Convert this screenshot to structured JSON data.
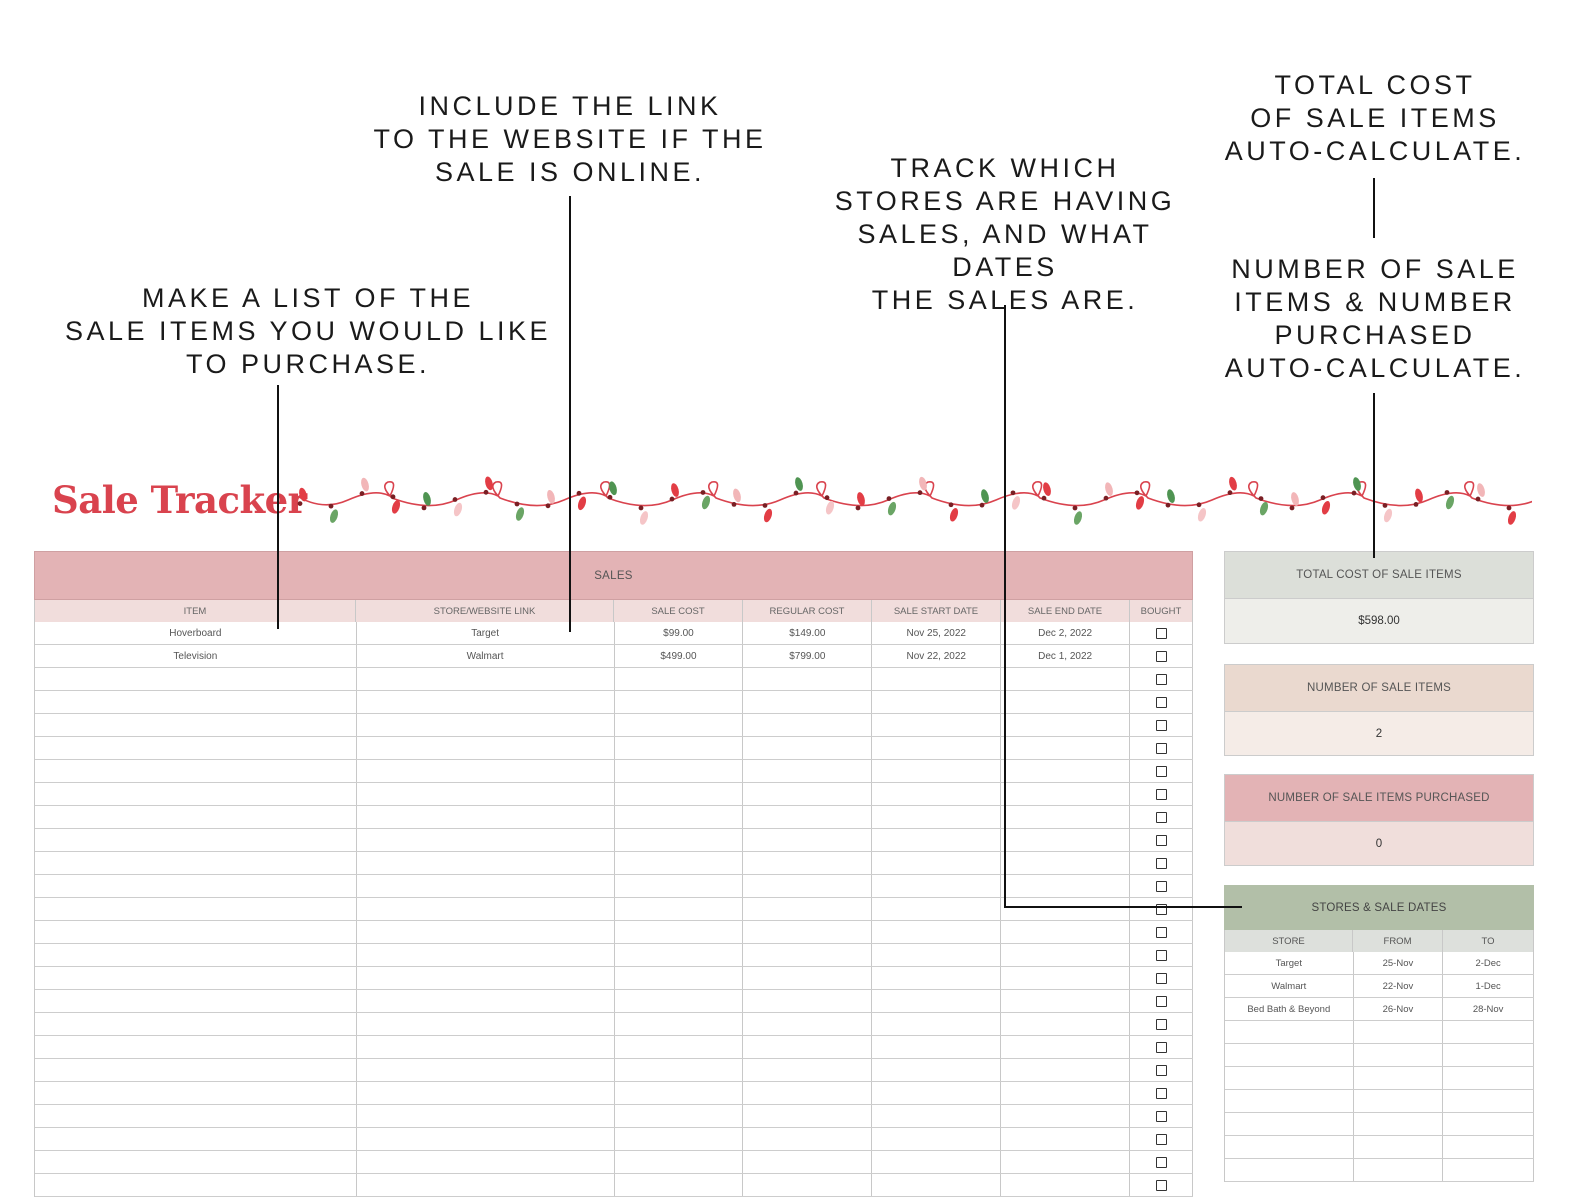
{
  "callouts": {
    "list_items": "MAKE A LIST OF THE\nSALE ITEMS YOU WOULD LIKE\nTO PURCHASE.",
    "include_link": "INCLUDE THE LINK\nTO THE WEBSITE IF THE\nSALE IS ONLINE.",
    "track_stores": "TRACK WHICH\nSTORES ARE HAVING\nSALES, AND WHAT DATES\nTHE SALES ARE.",
    "total_cost": "TOTAL COST\nOF SALE ITEMS\nAUTO-CALCULATE.",
    "number_items": "NUMBER OF SALE\nITEMS & NUMBER\nPURCHASED\nAUTO-CALCULATE."
  },
  "title": "Sale Tracker",
  "colors": {
    "title": "#d9434e",
    "sales_header": "#e3b3b5",
    "total_cost_header": "#dcdfd9",
    "number_items_header": "#ead9cf",
    "purchased_header": "#e3b3b5",
    "stores_header": "#b2bfa8"
  },
  "sales": {
    "header": "SALES",
    "columns": [
      "ITEM",
      "STORE/WEBSITE LINK",
      "SALE COST",
      "REGULAR COST",
      "SALE START DATE",
      "SALE END DATE",
      "BOUGHT"
    ],
    "rows": [
      {
        "item": "Hoverboard",
        "store": "Target",
        "sale_cost": "$99.00",
        "regular_cost": "$149.00",
        "start": "Nov 25, 2022",
        "end": "Dec 2, 2022",
        "bought": false
      },
      {
        "item": "Television",
        "store": "Walmart",
        "sale_cost": "$499.00",
        "regular_cost": "$799.00",
        "start": "Nov 22, 2022",
        "end": "Dec 1, 2022",
        "bought": false
      }
    ],
    "empty_rows": 23
  },
  "summary": {
    "total_cost": {
      "label": "TOTAL COST OF SALE ITEMS",
      "value": "$598.00"
    },
    "number_items": {
      "label": "NUMBER OF SALE ITEMS",
      "value": "2"
    },
    "purchased": {
      "label": "NUMBER OF SALE ITEMS PURCHASED",
      "value": "0"
    }
  },
  "stores": {
    "header": "STORES & SALE DATES",
    "columns": [
      "STORE",
      "FROM",
      "TO"
    ],
    "rows": [
      {
        "store": "Target",
        "from": "25-Nov",
        "to": "2-Dec"
      },
      {
        "store": "Walmart",
        "from": "22-Nov",
        "to": "1-Dec"
      },
      {
        "store": "Bed Bath & Beyond",
        "from": "26-Nov",
        "to": "28-Nov"
      }
    ],
    "empty_rows": 7
  }
}
